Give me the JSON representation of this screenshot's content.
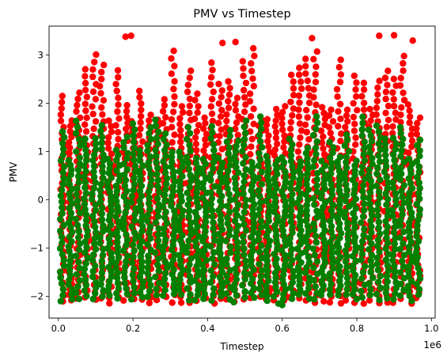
{
  "chart_data": {
    "type": "scatter",
    "title": "PMV vs Timestep",
    "xlabel": "Timestep",
    "ylabel": "PMV",
    "x_offset_text": "1e6",
    "xlim": [
      -25000,
      1010000
    ],
    "ylim": [
      -2.45,
      3.6
    ],
    "xticks": [
      0,
      200000,
      400000,
      600000,
      800000,
      1000000
    ],
    "xtick_labels": [
      "0.0",
      "0.2",
      "0.4",
      "0.6",
      "0.8",
      "1.0"
    ],
    "yticks": [
      -2,
      -1,
      0,
      1,
      2,
      3
    ],
    "ytick_labels": [
      "−2",
      "−1",
      "0",
      "1",
      "2",
      "3"
    ],
    "grid": false,
    "colors": {
      "red_series": "#ff0000",
      "green_series": "#008000"
    },
    "series": [
      {
        "color": "#ff0000",
        "x_range": [
          0,
          975000
        ],
        "y_range": [
          -2.15,
          3.4
        ],
        "day_cycles": 46,
        "points": [
          [
            180000,
            3.38
          ],
          [
            195000,
            3.4
          ],
          [
            440000,
            3.25
          ],
          [
            475000,
            3.27
          ],
          [
            680000,
            3.35
          ],
          [
            860000,
            3.4
          ],
          [
            900000,
            3.41
          ],
          [
            950000,
            3.3
          ]
        ]
      },
      {
        "color": "#008000",
        "x_range": [
          0,
          975000
        ],
        "y_range": [
          -2.1,
          1.75
        ],
        "day_cycles": 46,
        "points": [
          [
            590000,
            -2.15
          ],
          [
            600000,
            -2.18
          ],
          [
            470000,
            -2.12
          ]
        ]
      }
    ]
  }
}
